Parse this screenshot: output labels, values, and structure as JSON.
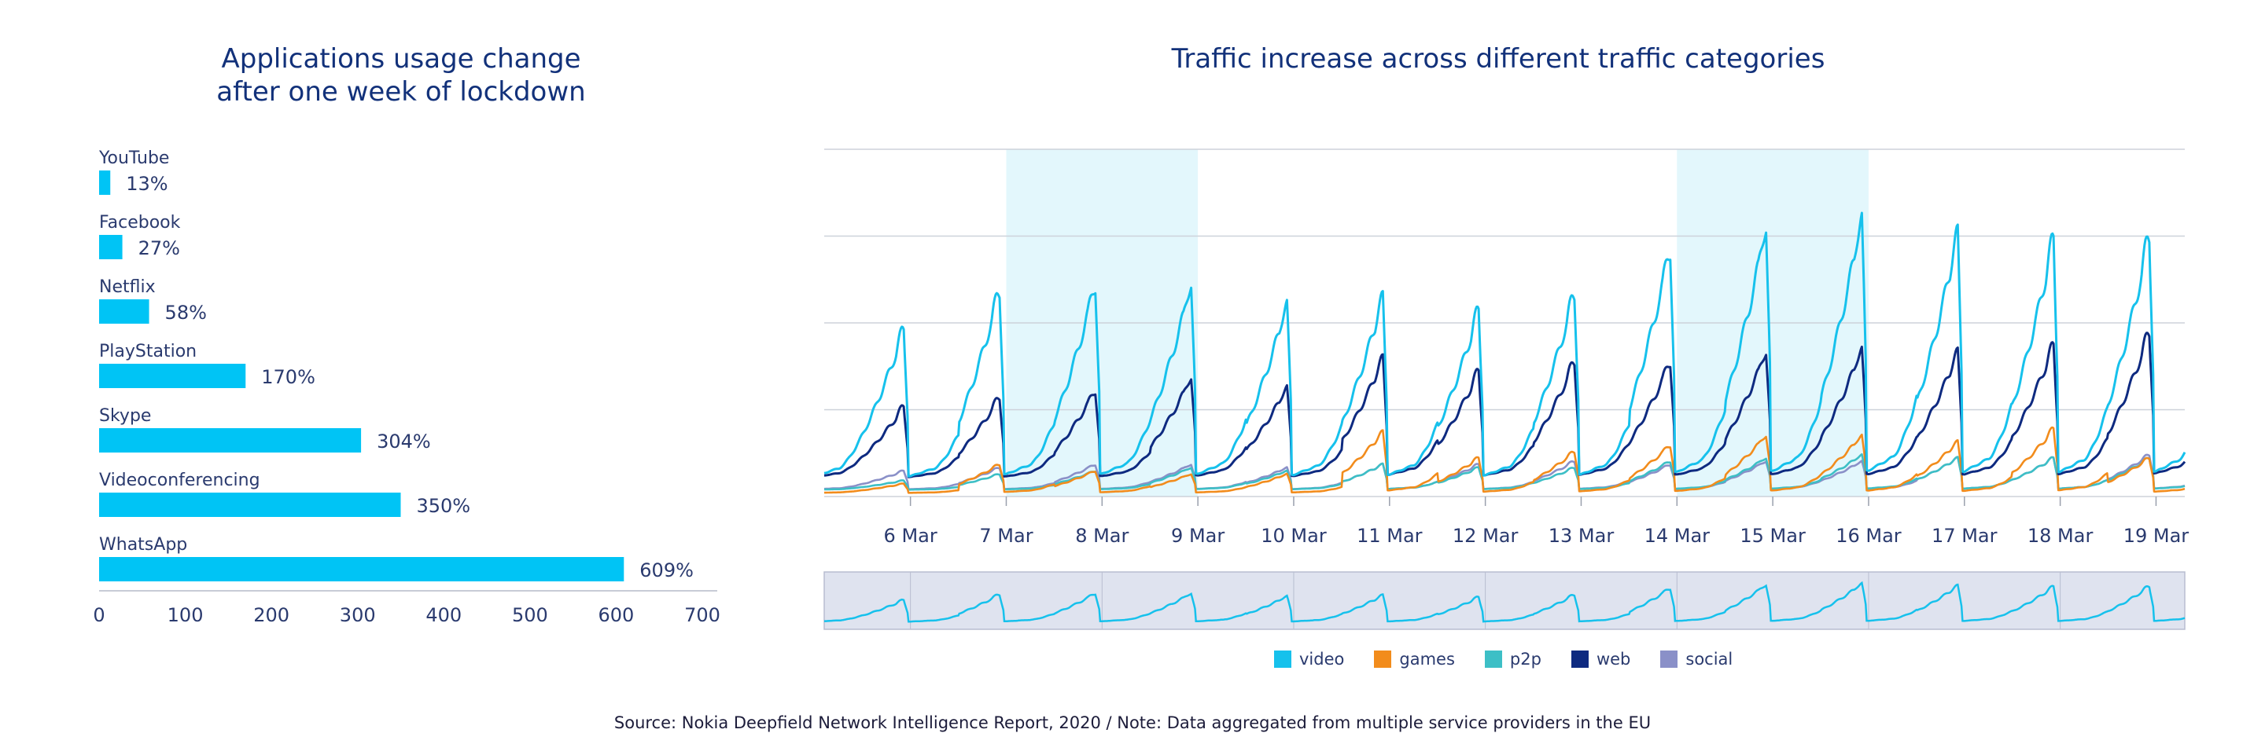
{
  "source_note": "Source: Nokia Deepfield Network Intelligence Report, 2020  /  Note: Data aggregated from multiple service providers in the EU",
  "colors": {
    "bar": "#00c4f5",
    "video": "#16c1ec",
    "games": "#f28c1c",
    "p2p": "#3dbfc6",
    "web": "#0e2a80",
    "social": "#8a90c8",
    "weekend_shade": "#e3f7fc",
    "navigator_bg": "#dfe3ef",
    "title": "#12317a"
  },
  "chart_data": [
    {
      "type": "bar",
      "orientation": "horizontal",
      "title": "Applications usage change\nafter one week of lockdown",
      "categories": [
        "YouTube",
        "Facebook",
        "Netflix",
        "PlayStation",
        "Skype",
        "Videoconferencing",
        "WhatsApp"
      ],
      "values": [
        13,
        27,
        58,
        170,
        304,
        350,
        609
      ],
      "value_labels": [
        "13%",
        "27%",
        "58%",
        "170%",
        "304%",
        "350%",
        "609%"
      ],
      "xlim": [
        0,
        700
      ],
      "xticks": [
        "0",
        "100",
        "200",
        "300",
        "400",
        "500",
        "600",
        "700"
      ]
    },
    {
      "type": "line",
      "title": "Traffic increase across different traffic categories",
      "x_range_days": [
        5.1,
        19.3
      ],
      "xticks": [
        {
          "day": 6,
          "label": "6 Mar"
        },
        {
          "day": 7,
          "label": "7 Mar"
        },
        {
          "day": 8,
          "label": "8 Mar"
        },
        {
          "day": 9,
          "label": "9 Mar"
        },
        {
          "day": 10,
          "label": "10 Mar"
        },
        {
          "day": 11,
          "label": "11 Mar"
        },
        {
          "day": 12,
          "label": "12 Mar"
        },
        {
          "day": 13,
          "label": "13 Mar"
        },
        {
          "day": 14,
          "label": "14 Mar"
        },
        {
          "day": 15,
          "label": "15 Mar"
        },
        {
          "day": 16,
          "label": "16 Mar"
        },
        {
          "day": 17,
          "label": "17 Mar"
        },
        {
          "day": 18,
          "label": "18 Mar"
        },
        {
          "day": 19,
          "label": "19 Mar"
        }
      ],
      "shaded_weekends": [
        [
          7,
          9
        ],
        [
          14,
          16
        ]
      ],
      "grid": true,
      "ylim": [
        0,
        100
      ],
      "legend": [
        "video",
        "games",
        "p2p",
        "web",
        "social"
      ],
      "legend_position": "bottom",
      "series": [
        {
          "name": "video",
          "daily_peaks": [
            52,
            64,
            66,
            66,
            60,
            62,
            58,
            63,
            77,
            84,
            87,
            82,
            80,
            81
          ]
        },
        {
          "name": "web",
          "daily_peaks": [
            28,
            31,
            33,
            37,
            34,
            43,
            39,
            42,
            42,
            45,
            46,
            45,
            47,
            51
          ]
        },
        {
          "name": "games",
          "daily_peaks": [
            4,
            10,
            8,
            7,
            7,
            20,
            12,
            14,
            16,
            19,
            19,
            17,
            21,
            12
          ]
        },
        {
          "name": "p2p",
          "daily_peaks": [
            5,
            7,
            8,
            9,
            8,
            10,
            9,
            9,
            11,
            12,
            13,
            12,
            12,
            12
          ]
        },
        {
          "name": "social",
          "daily_peaks": [
            8,
            9,
            10,
            10,
            9,
            10,
            10,
            11,
            10,
            11,
            11,
            12,
            12,
            13
          ]
        }
      ],
      "navigator": {
        "series": "video"
      }
    }
  ]
}
